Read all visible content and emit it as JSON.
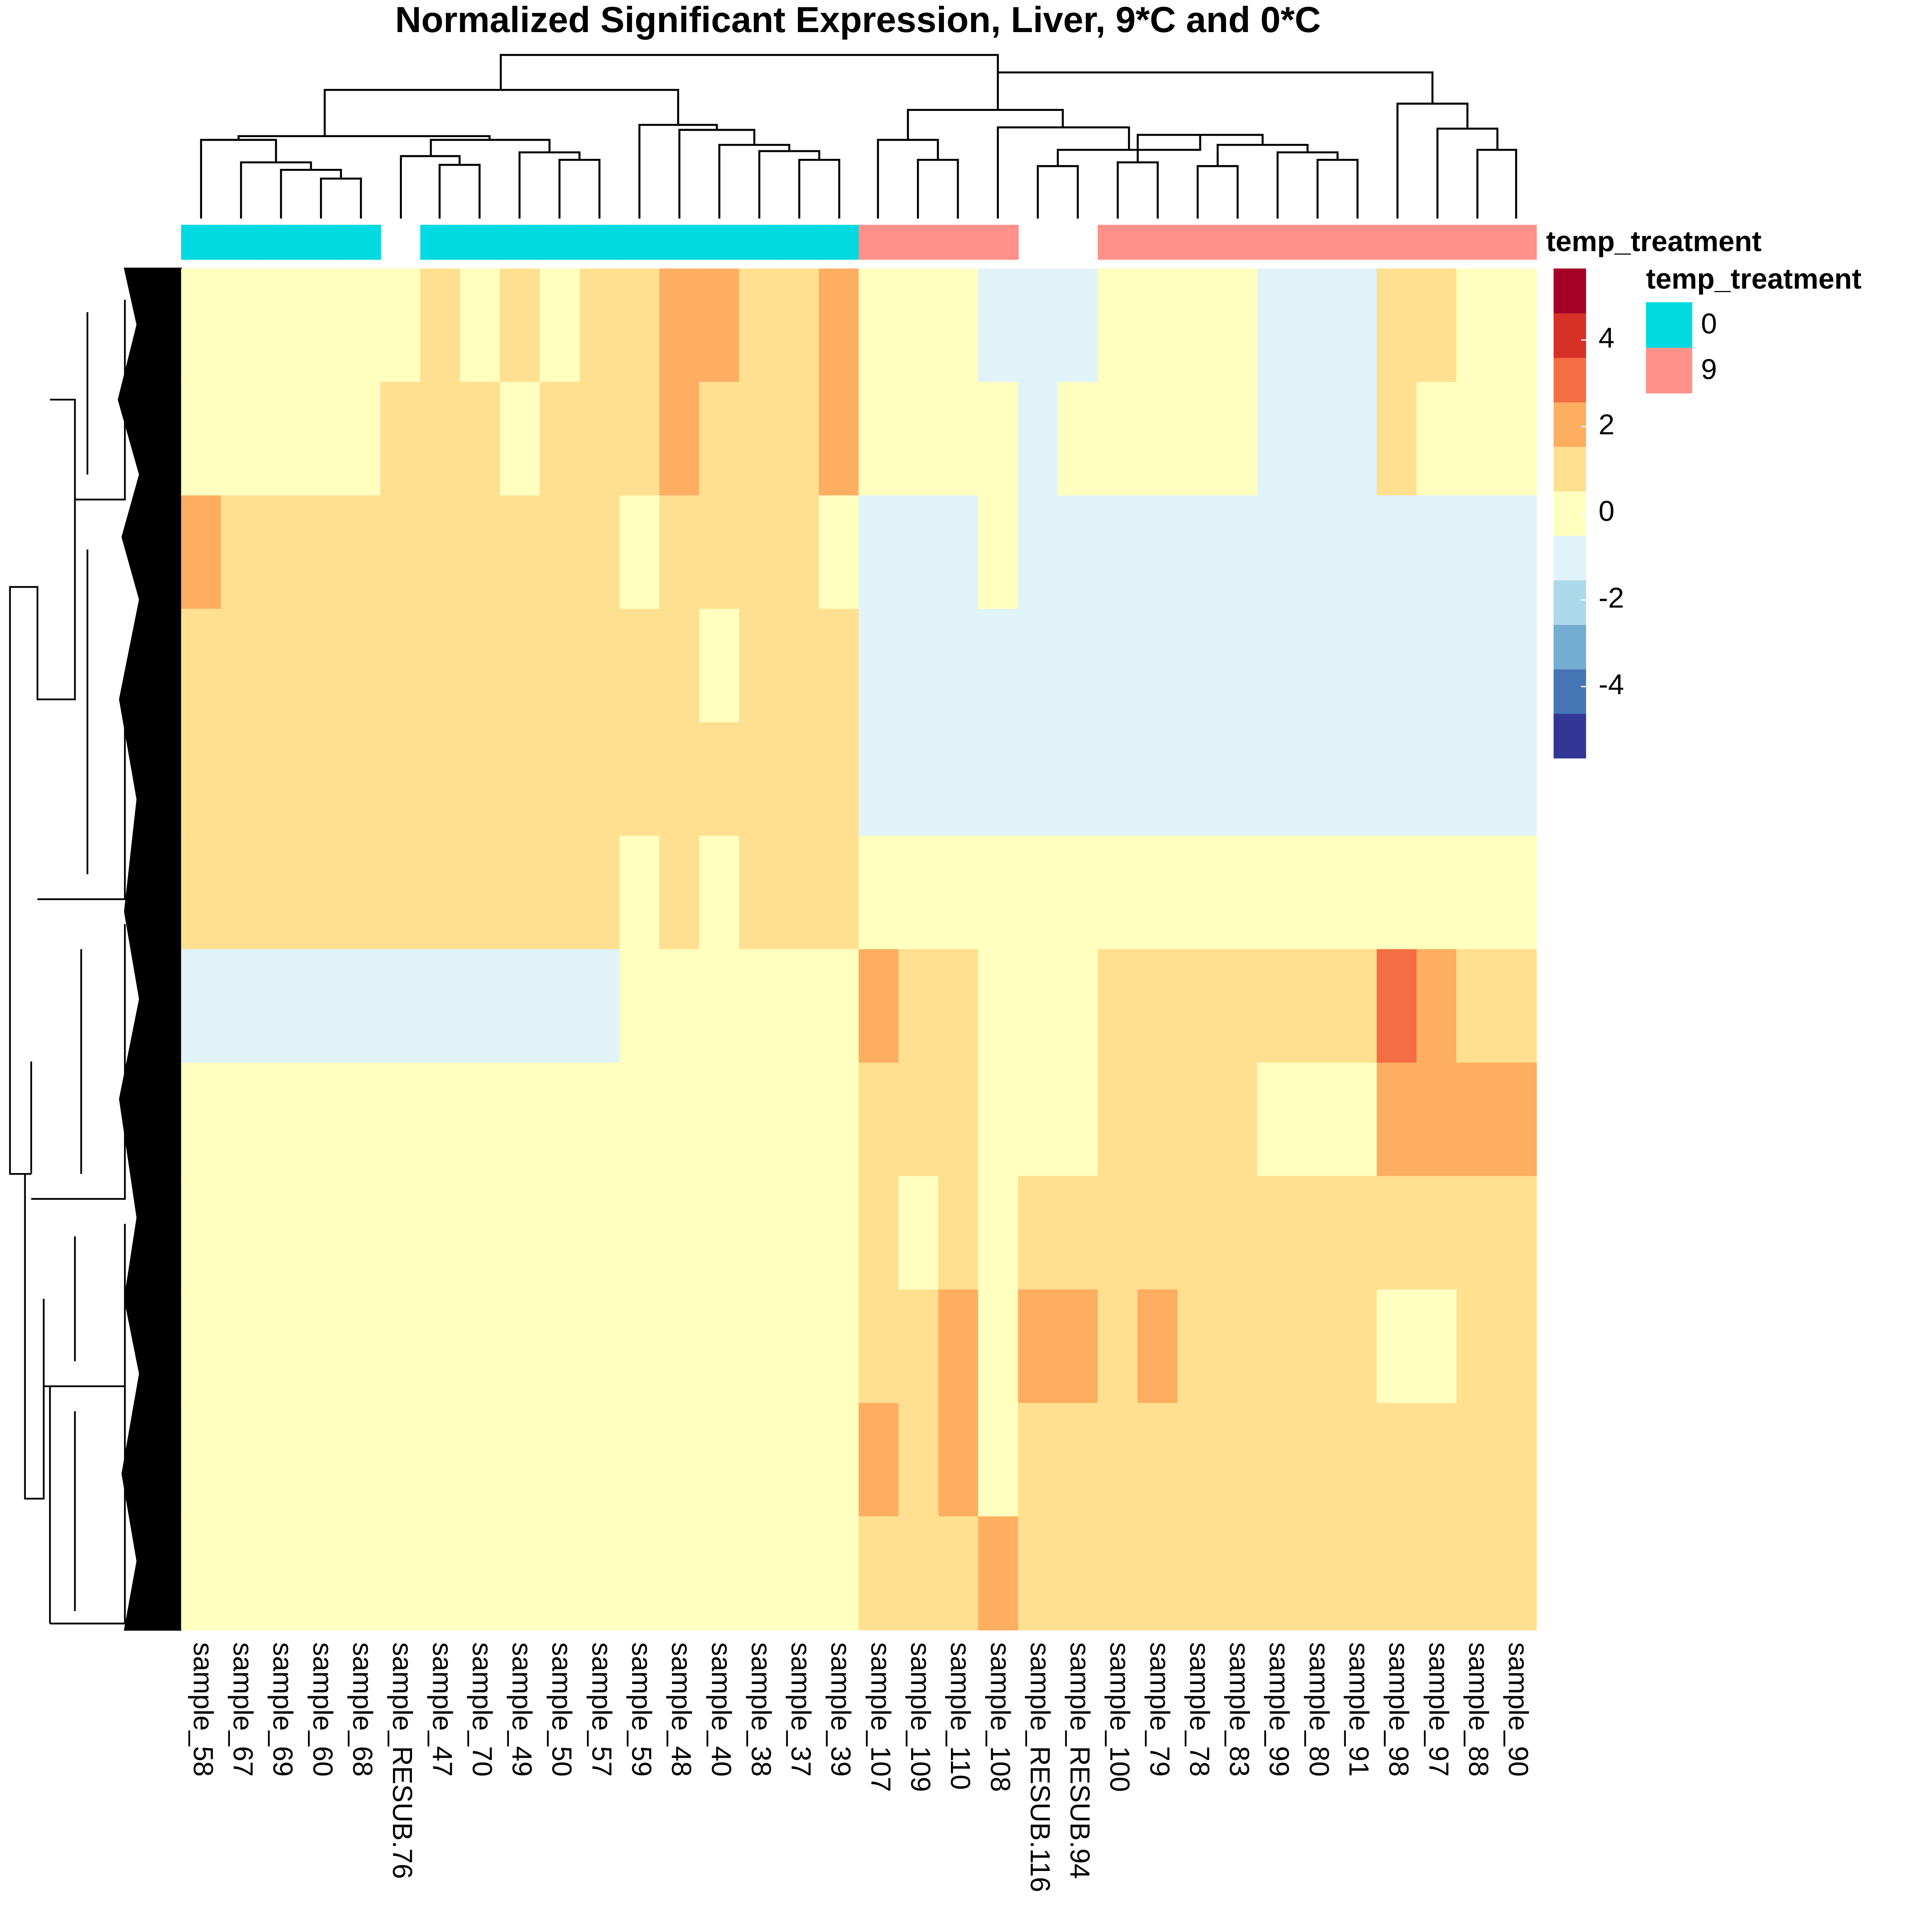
{
  "chart_data": {
    "type": "heatmap",
    "title": "Normalized Significant Expression, Liver, 9*C and 0*C",
    "columns": [
      "sample_58",
      "sample_67",
      "sample_69",
      "sample_60",
      "sample_68",
      "sample_RESUB.76",
      "sample_47",
      "sample_70",
      "sample_49",
      "sample_50",
      "sample_57",
      "sample_59",
      "sample_48",
      "sample_40",
      "sample_38",
      "sample_37",
      "sample_39",
      "sample_107",
      "sample_109",
      "sample_110",
      "sample_108",
      "sample_RESUB.116",
      "sample_RESUB.94",
      "sample_100",
      "sample_79",
      "sample_78",
      "sample_83",
      "sample_99",
      "sample_80",
      "sample_91",
      "sample_98",
      "sample_97",
      "sample_88",
      "sample_90"
    ],
    "matrix": [
      [
        0.5,
        0.4,
        0.5,
        0.4,
        0.5,
        0.5,
        0.6,
        0.5,
        0.6,
        0.5,
        0.6,
        1.2,
        2.5,
        2,
        1,
        1.5,
        2,
        -0.5,
        -0.4,
        -0.5,
        -0.6,
        -0.6,
        -0.6,
        -0.5,
        -0.5,
        -0.4,
        -0.5,
        -0.6,
        -0.6,
        -0.6,
        1,
        0.6,
        0.3,
        -0.3
      ],
      [
        0.5,
        0.5,
        0.4,
        0.5,
        0.4,
        0.6,
        0.6,
        0.6,
        0.5,
        0.6,
        0.6,
        1,
        2.5,
        1.5,
        1,
        1.3,
        1.8,
        -0.5,
        -0.5,
        -0.4,
        -0.5,
        -0.6,
        -0.5,
        -0.5,
        -0.5,
        -0.5,
        -0.5,
        -0.6,
        -0.6,
        -0.6,
        0.6,
        0.4,
        0.2,
        -0.3
      ],
      [
        2,
        0.7,
        0.6,
        0.7,
        0.7,
        1,
        0.7,
        0.6,
        1,
        0.8,
        0.8,
        0.5,
        0.6,
        0.8,
        0.6,
        0.6,
        0.5,
        -0.7,
        -0.7,
        -0.7,
        -0.4,
        -0.7,
        -0.7,
        -0.7,
        -0.7,
        -0.7,
        -0.7,
        -0.7,
        -0.7,
        -0.7,
        -0.8,
        -0.6,
        -0.6,
        -0.6
      ],
      [
        0.8,
        1.3,
        1,
        1.3,
        1.3,
        1.3,
        0.8,
        0.8,
        1.5,
        1.3,
        1.3,
        0.6,
        0.6,
        0.5,
        0.6,
        0.6,
        0.6,
        -0.8,
        -0.8,
        -0.8,
        -0.8,
        -0.8,
        -0.8,
        -0.8,
        -0.8,
        -0.8,
        -0.8,
        -0.8,
        -0.8,
        -0.8,
        -1,
        -0.8,
        -0.7,
        -0.6
      ],
      [
        1,
        1,
        0.9,
        1,
        1,
        1.1,
        0.9,
        0.8,
        1.3,
        1.1,
        1,
        0.6,
        0.6,
        0.6,
        0.6,
        0.9,
        0.8,
        -0.7,
        -0.7,
        -0.7,
        -0.7,
        -0.7,
        -0.7,
        -0.7,
        -0.7,
        -0.7,
        -0.7,
        -0.7,
        -0.7,
        -0.7,
        -0.6,
        -0.6,
        -0.6,
        -0.6
      ],
      [
        0.6,
        0.6,
        0.6,
        0.6,
        0.6,
        0.7,
        0.6,
        0.6,
        0.7,
        0.7,
        0.7,
        0.4,
        0.6,
        0.5,
        0.6,
        0.8,
        0.6,
        -0.4,
        -0.4,
        -0.4,
        -0.4,
        -0.4,
        -0.4,
        -0.4,
        -0.4,
        -0.4,
        -0.4,
        -0.4,
        -0.4,
        -0.4,
        0.2,
        -0.2,
        -0.3,
        -0.3
      ],
      [
        -0.6,
        -0.6,
        -0.6,
        -0.6,
        -0.6,
        -0.6,
        -0.6,
        -0.6,
        -0.6,
        -0.6,
        -0.6,
        0.3,
        0.3,
        -0.4,
        -0.4,
        -0.4,
        -0.5,
        2,
        0.8,
        0.8,
        0.5,
        0.3,
        0.5,
        0.7,
        0.7,
        0.7,
        1,
        0.7,
        0.7,
        0.7,
        3.5,
        2.5,
        1,
        1.5
      ],
      [
        -0.5,
        -0.5,
        -0.5,
        -0.5,
        -0.5,
        -0.5,
        -0.5,
        -0.5,
        -0.5,
        -0.5,
        -0.5,
        0.2,
        0.5,
        -0.3,
        -0.2,
        -0.3,
        -0.4,
        1.2,
        0.8,
        0.8,
        -0.3,
        0.3,
        0.5,
        0.7,
        0.8,
        1,
        1.2,
        0.5,
        0.5,
        0.4,
        2.5,
        2,
        2,
        2
      ],
      [
        -0.4,
        -0.4,
        -0.4,
        -0.4,
        -0.4,
        -0.4,
        -0.4,
        -0.4,
        -0.4,
        -0.4,
        -0.4,
        0,
        0.3,
        -0.3,
        -0.3,
        -0.3,
        -0.3,
        1,
        0.5,
        0.8,
        0.5,
        1,
        1.2,
        1,
        1.2,
        0.8,
        0.8,
        1.2,
        0.8,
        0.8,
        1.2,
        1.2,
        0.7,
        1.2
      ],
      [
        0.2,
        0.2,
        0.2,
        0.2,
        0.2,
        0,
        -0.3,
        -0.3,
        -0.3,
        -0.3,
        -0.3,
        -0.2,
        -0.2,
        -0.3,
        -0.3,
        -0.3,
        -0.3,
        1.2,
        1,
        2,
        -0.3,
        1.8,
        2.5,
        1.5,
        1.8,
        0.8,
        0.8,
        1.5,
        0.8,
        1.2,
        0.5,
        0.5,
        0.6,
        0.8
      ],
      [
        -0.2,
        -0.2,
        -0.2,
        -0.2,
        -0.2,
        -0.2,
        -0.2,
        -0.2,
        -0.2,
        -0.2,
        -0.2,
        0.2,
        -0.2,
        -0.2,
        -0.2,
        -0.2,
        -0.2,
        2,
        1.5,
        2,
        0,
        0.8,
        1,
        0.8,
        0.8,
        0.8,
        0.8,
        0.8,
        0.8,
        1.2,
        0.8,
        0.8,
        1.2,
        1.2
      ],
      [
        0.1,
        0.2,
        0.1,
        0.1,
        0.1,
        0.1,
        0,
        0,
        0.1,
        0.1,
        0.1,
        0.1,
        0,
        0,
        0,
        0,
        0,
        0.8,
        1,
        0.8,
        2.5,
        0.8,
        0.8,
        0.8,
        0.8,
        0.8,
        0.8,
        1.2,
        1.2,
        0.8,
        0.8,
        0.8,
        0.8,
        1
      ]
    ],
    "clim": [
      -5.65,
      5.65
    ],
    "colorscale": [
      "#313695",
      "#4575b4",
      "#74add1",
      "#abd9e9",
      "#e0f3f8",
      "#ffffbf",
      "#fee090",
      "#fdae61",
      "#f46d43",
      "#d73027",
      "#a50026"
    ],
    "ticks": [
      -4,
      -2,
      0,
      2,
      4
    ],
    "annotation": {
      "name": "temp_treatment",
      "values": [
        "0",
        "0",
        "0",
        "0",
        "0",
        null,
        "0",
        "0",
        "0",
        "0",
        "0",
        "0",
        "0",
        "0",
        "0",
        "0",
        "0",
        "9",
        "9",
        "9",
        "9",
        null,
        null,
        "9",
        "9",
        "9",
        "9",
        "9",
        "9",
        "9",
        "9",
        "9",
        "9",
        "9"
      ],
      "levels": [
        "0",
        "9"
      ],
      "colors": [
        "#00dae0",
        "#ff918a"
      ]
    }
  }
}
